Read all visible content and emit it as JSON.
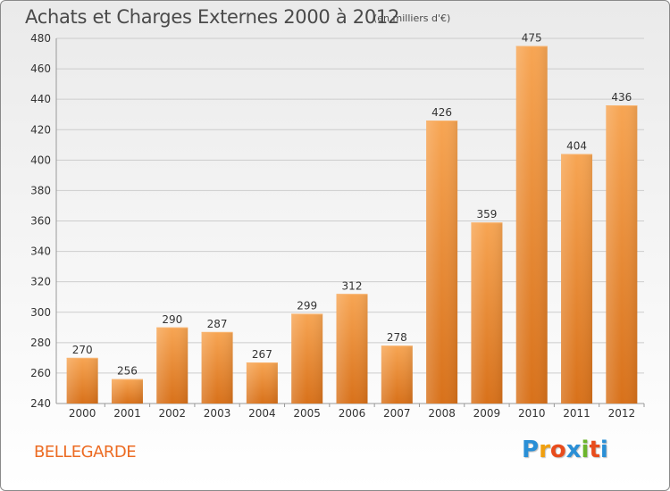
{
  "title": "Achats et Charges Externes 2000 à 2012",
  "subtitle": "(en milliers d'€)",
  "city": "BELLEGARDE",
  "logo": {
    "letters": [
      "P",
      "r",
      "o",
      "x",
      "i",
      "t",
      "i"
    ],
    "colors": [
      "#2a8fd6",
      "#f0a010",
      "#e84c1c",
      "#2a8fd6",
      "#6cb52c",
      "#e84c1c",
      "#2a8fd6"
    ]
  },
  "colors": {
    "bar_light": "#f7a553",
    "bar_dark": "#d8711a",
    "grid": "#cccccc",
    "axis_text": "#333333"
  },
  "chart_data": {
    "type": "bar",
    "title": "Achats et Charges Externes 2000 à 2012",
    "subtitle": "(en milliers d'€)",
    "categories": [
      "2000",
      "2001",
      "2002",
      "2003",
      "2004",
      "2005",
      "2006",
      "2007",
      "2008",
      "2009",
      "2010",
      "2011",
      "2012"
    ],
    "values": [
      270,
      256,
      290,
      287,
      267,
      299,
      312,
      278,
      426,
      359,
      475,
      404,
      436
    ],
    "data_labels": [
      "270",
      "256",
      "290",
      "287",
      "267",
      "299",
      "312",
      "278",
      "426",
      "359",
      "475",
      "404",
      "436"
    ],
    "y_ticks": [
      "240",
      "260",
      "280",
      "300",
      "320",
      "340",
      "360",
      "380",
      "400",
      "420",
      "440",
      "460",
      "480"
    ],
    "ylim": [
      240,
      480
    ],
    "xlabel": "",
    "ylabel": "",
    "grid": true,
    "legend": false
  }
}
